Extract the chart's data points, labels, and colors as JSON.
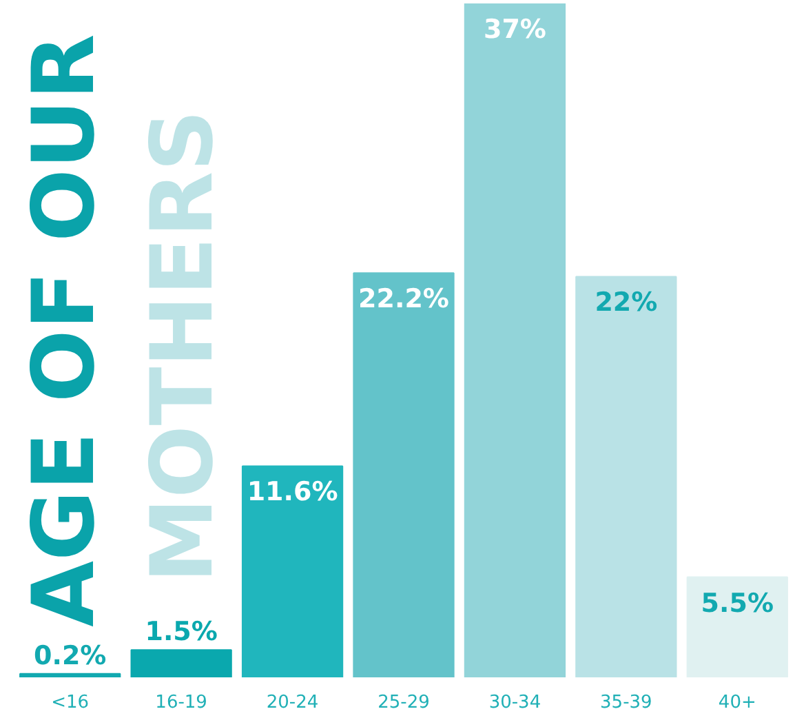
{
  "chart_data": {
    "type": "bar",
    "title": "AGE OF OUR",
    "subtitle": "MOTHERS",
    "categories": [
      "<16",
      "16-19",
      "20-24",
      "25-29",
      "30-34",
      "35-39",
      "40+"
    ],
    "values": [
      0.2,
      1.5,
      11.6,
      22.2,
      37,
      22,
      5.5
    ],
    "value_labels": [
      "0.2%",
      "1.5%",
      "11.6%",
      "22.2%",
      "37%",
      "22%",
      "5.5%"
    ],
    "colors": [
      "#12a9b0",
      "#0aa8ae",
      "#20b6bd",
      "#63c3ca",
      "#92d4d9",
      "#b9e2e6",
      "#e0f1f1"
    ],
    "grid": false
  }
}
